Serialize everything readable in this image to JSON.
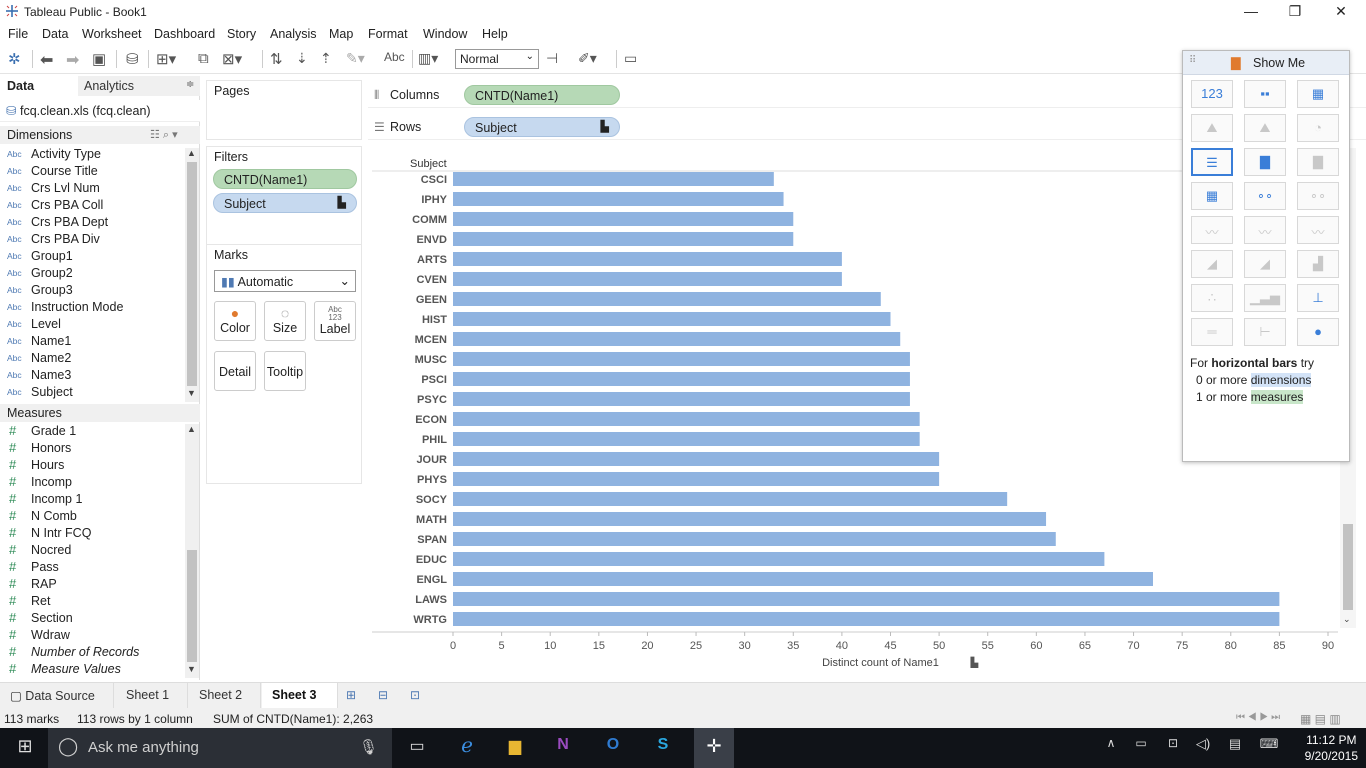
{
  "window": {
    "title": "Tableau Public - Book1",
    "minimize": "—",
    "maximize": "❐",
    "close": "✕"
  },
  "menu": [
    "File",
    "Data",
    "Worksheet",
    "Dashboard",
    "Story",
    "Analysis",
    "Map",
    "Format",
    "Window",
    "Help"
  ],
  "toolbar": {
    "abc_label": "Abc",
    "fit_value": "Normal"
  },
  "data_pane": {
    "tab_data": "Data",
    "tab_analytics": "Analytics",
    "datasource": "fcq.clean.xls (fcq.clean)",
    "dimensions_label": "Dimensions",
    "dimensions": [
      "Activity Type",
      "Course Title",
      "Crs Lvl Num",
      "Crs PBA Coll",
      "Crs PBA Dept",
      "Crs PBA Div",
      "Group1",
      "Group2",
      "Group3",
      "Instruction Mode",
      "Level",
      "Name1",
      "Name2",
      "Name3",
      "Subject"
    ],
    "dim_type_icon": "Abc",
    "measures_label": "Measures",
    "measures": [
      "Grade 1",
      "Honors",
      "Hours",
      "Incomp",
      "Incomp 1",
      "N Comb",
      "N Intr FCQ",
      "Nocred",
      "Pass",
      "RAP",
      "Ret",
      "Section",
      "Wdraw",
      "Number of Records",
      "Measure Values"
    ],
    "measure_type_icon": "#"
  },
  "shelves": {
    "pages_label": "Pages",
    "filters_label": "Filters",
    "filters": [
      "CNTD(Name1)",
      "Subject"
    ],
    "marks_label": "Marks",
    "mark_type": "Automatic",
    "mark_buttons": [
      "Color",
      "Size",
      "Label",
      "Detail",
      "Tooltip"
    ],
    "label_icon": "Abc\n123",
    "columns_label": "Columns",
    "columns_pill": "CNTD(Name1)",
    "rows_label": "Rows",
    "rows_pill": "Subject"
  },
  "chart_data": {
    "type": "bar",
    "orientation": "horizontal",
    "row_header": "Subject",
    "categories": [
      "CSCI",
      "IPHY",
      "COMM",
      "ENVD",
      "ARTS",
      "CVEN",
      "GEEN",
      "HIST",
      "MCEN",
      "MUSC",
      "PSCI",
      "PSYC",
      "ECON",
      "PHIL",
      "JOUR",
      "PHYS",
      "SOCY",
      "MATH",
      "SPAN",
      "EDUC",
      "ENGL",
      "LAWS",
      "WRTG"
    ],
    "values": [
      33,
      34,
      35,
      35,
      40,
      40,
      44,
      45,
      46,
      47,
      47,
      47,
      48,
      48,
      50,
      50,
      57,
      61,
      62,
      67,
      72,
      85,
      85
    ],
    "xlabel": "Distinct count of Name1",
    "xlim": [
      0,
      90
    ],
    "xticks": [
      0,
      5,
      10,
      15,
      20,
      25,
      30,
      35,
      40,
      45,
      50,
      55,
      60,
      65,
      70,
      75,
      80,
      85,
      90
    ],
    "bar_color": "#8fb3e0"
  },
  "show_me": {
    "title": "Show Me",
    "hint_prefix": "For ",
    "hint_bold": "horizontal bars",
    "hint_suffix": " try",
    "hint_line2_prefix": "0 or more ",
    "hint_line2_hl": "dimensions",
    "hint_line3_prefix": "1 or more ",
    "hint_line3_hl": "measures"
  },
  "sheet_tabs": {
    "datasource": "Data Source",
    "sheets": [
      "Sheet 1",
      "Sheet 2",
      "Sheet 3"
    ],
    "active": "Sheet 3"
  },
  "status": {
    "marks": "113 marks",
    "rows": "113 rows by 1 column",
    "sum": "SUM of CNTD(Name1): 2,263"
  },
  "taskbar": {
    "search_placeholder": "Ask me anything",
    "time": "11:12 PM",
    "date": "9/20/2015"
  }
}
